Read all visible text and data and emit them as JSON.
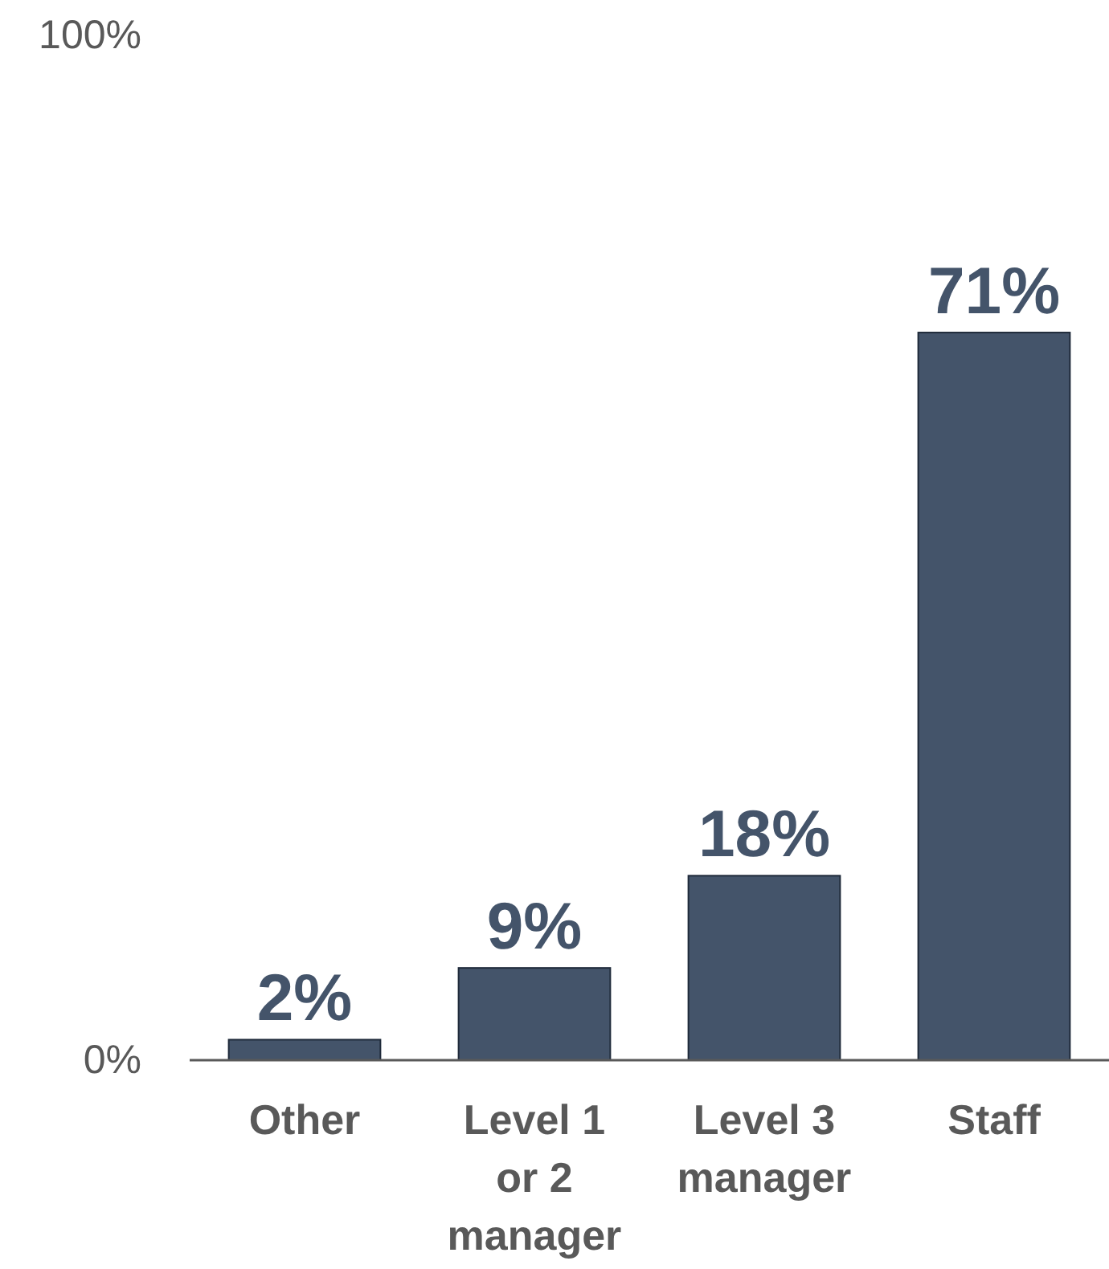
{
  "chart_data": {
    "type": "bar",
    "categories": [
      "Other",
      "Level 1 or 2 manager",
      "Level 3 manager",
      "Staff"
    ],
    "values": [
      2,
      9,
      18,
      71
    ],
    "value_labels": [
      "2%",
      "9%",
      "18%",
      "71%"
    ],
    "color": "#44546a",
    "ylim": [
      0,
      100
    ],
    "yticks": [
      {
        "value": 0,
        "label": "0%"
      },
      {
        "value": 100,
        "label": "100%"
      }
    ]
  }
}
